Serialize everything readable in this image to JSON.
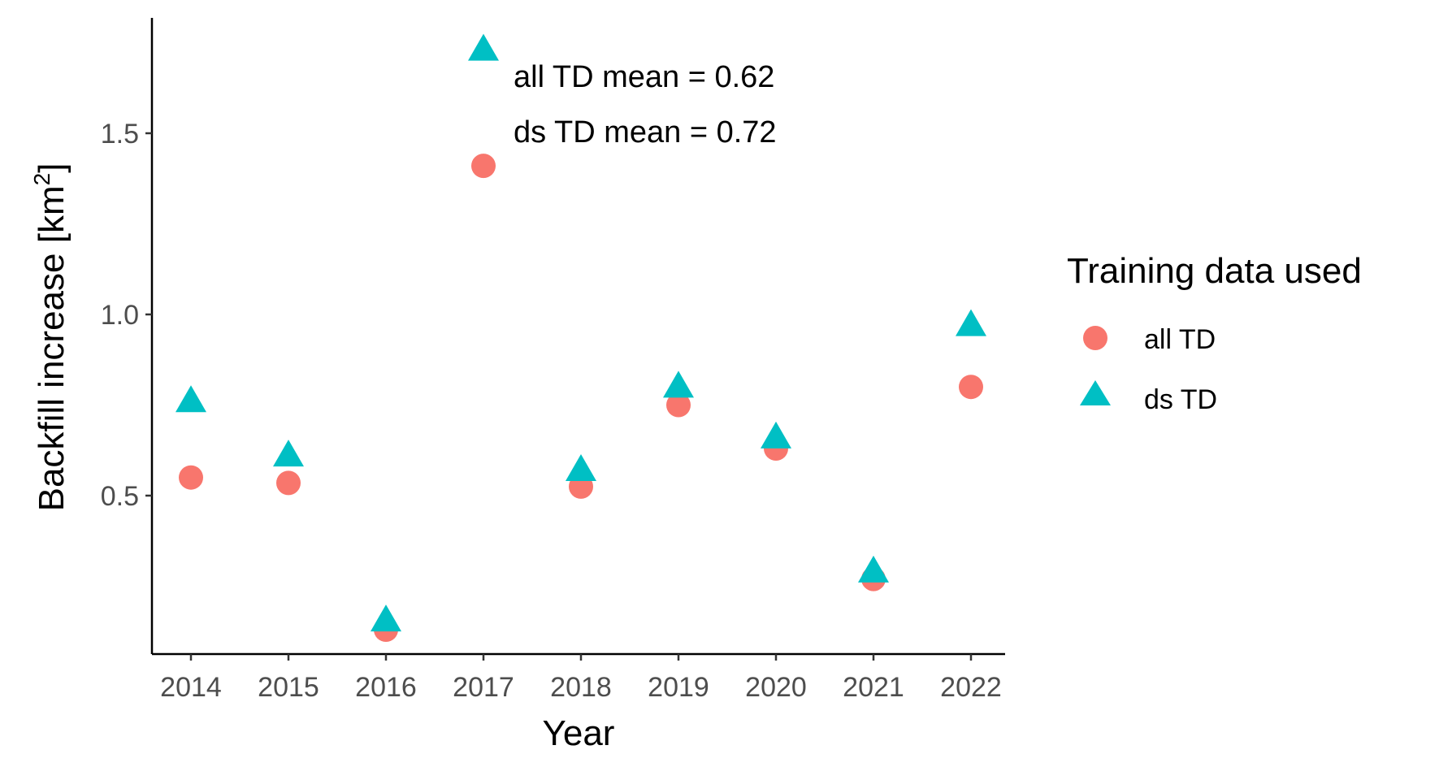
{
  "chart_data": {
    "type": "scatter",
    "xlabel": "Year",
    "ylabel": "Backfill increase [km",
    "ylabel_sup": "2",
    "ylabel_end": "]",
    "categories": [
      "2014",
      "2015",
      "2016",
      "2017",
      "2018",
      "2019",
      "2020",
      "2021",
      "2022"
    ],
    "yticks": [
      "0.5",
      "1.0",
      "1.5"
    ],
    "ylim": [
      0.07,
      1.77
    ],
    "grid": false,
    "legend_position": "right",
    "legend_title": "Training data used",
    "series": [
      {
        "name": "all TD",
        "shape": "circle",
        "color": "#F8766D",
        "values": [
          0.55,
          0.535,
          0.13,
          1.41,
          0.525,
          0.75,
          0.63,
          0.27,
          0.8
        ]
      },
      {
        "name": "ds TD",
        "shape": "triangle",
        "color": "#00BFC4",
        "values": [
          0.76,
          0.61,
          0.155,
          1.73,
          0.57,
          0.8,
          0.66,
          0.29,
          0.97
        ]
      }
    ],
    "annotations": [
      "all TD mean = 0.62",
      "ds TD mean = 0.72"
    ]
  }
}
